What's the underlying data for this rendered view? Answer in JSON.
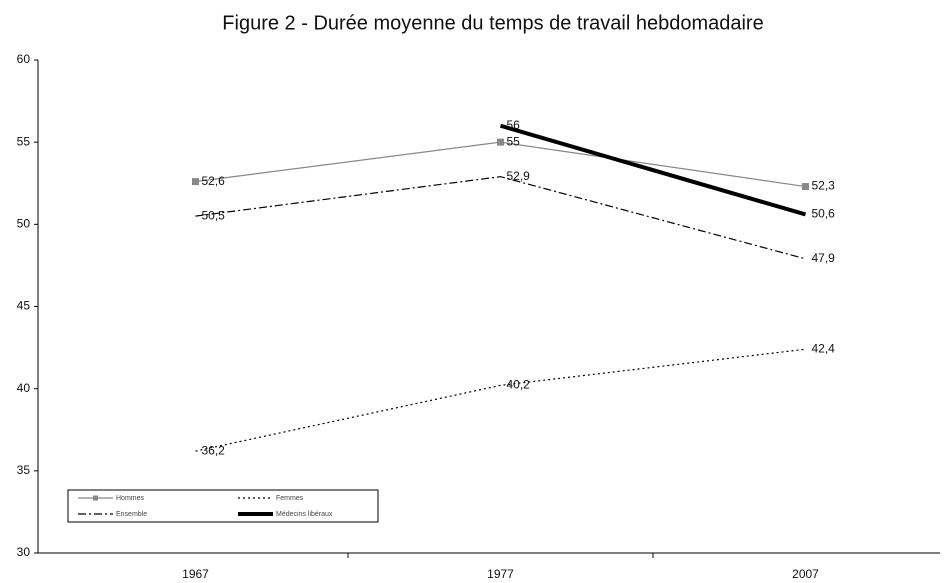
{
  "chart_data": {
    "type": "line",
    "title": "Figure 2 - Durée moyenne du temps de travail hebdomadaire",
    "categories": [
      "1967",
      "1977",
      "2007"
    ],
    "ylim": [
      30,
      60
    ],
    "yticks": [
      30,
      35,
      40,
      45,
      50,
      55,
      60
    ],
    "series": [
      {
        "name": "Hommes",
        "color": "#888888",
        "width": 1.2,
        "dash": "",
        "marker": "square",
        "values": [
          52.6,
          55,
          52.3
        ],
        "value_labels": [
          "52,6",
          "55",
          "52,3"
        ]
      },
      {
        "name": "Femmes",
        "color": "#000000",
        "width": 1.2,
        "dash": "2 3",
        "marker": "none",
        "values": [
          36.2,
          40.2,
          42.4
        ],
        "value_labels": [
          "36,2",
          "40,2",
          "42,4"
        ]
      },
      {
        "name": "Ensemble",
        "color": "#000000",
        "width": 1.2,
        "dash": "8 3 2 3",
        "marker": "none",
        "values": [
          50.5,
          52.9,
          47.9
        ],
        "value_labels": [
          "50,5",
          "52,9",
          "47,9"
        ]
      },
      {
        "name": "Médecins libéraux",
        "color": "#000000",
        "width": 4,
        "dash": "",
        "marker": "none",
        "values": [
          null,
          56,
          50.6
        ],
        "value_labels": [
          null,
          "56",
          "50,6"
        ]
      }
    ]
  }
}
